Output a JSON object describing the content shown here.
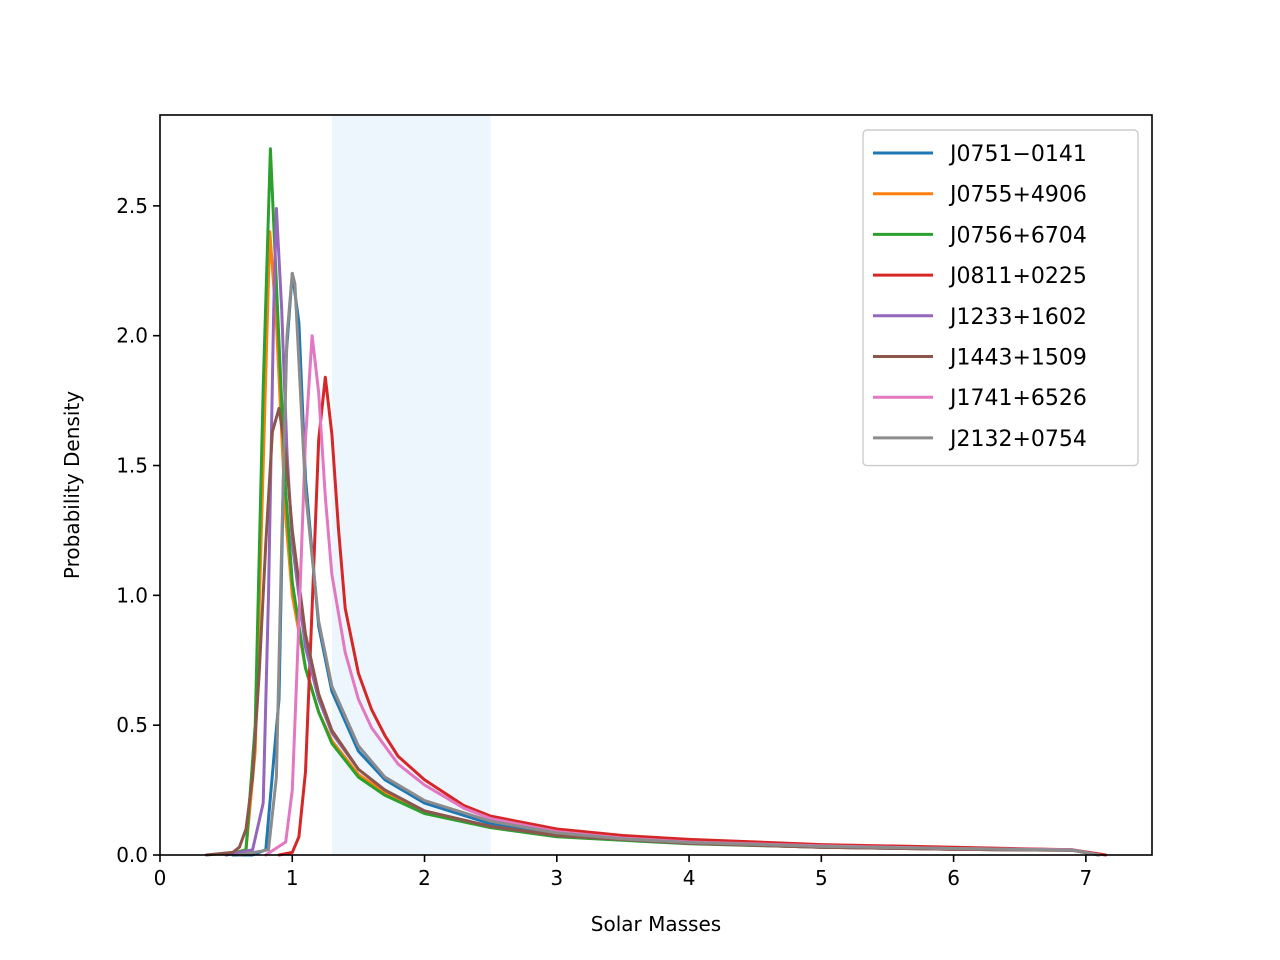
{
  "chart_data": {
    "type": "line",
    "title": "",
    "xlabel": "Solar Masses",
    "ylabel": "Probability Density",
    "xlim": [
      0,
      7.5
    ],
    "ylim": [
      0,
      2.85
    ],
    "xticks": [
      0,
      1,
      2,
      3,
      4,
      5,
      6,
      7
    ],
    "yticks": [
      0.0,
      0.5,
      1.0,
      1.5,
      2.0,
      2.5
    ],
    "grid": false,
    "legend_position": "top-right",
    "shaded_region": {
      "x_start": 1.3,
      "x_end": 2.5,
      "color": "#eef6fd"
    },
    "series": [
      {
        "name": "J0751−0141",
        "color": "#1f77b4",
        "x": [
          0.55,
          0.7,
          0.8,
          0.9,
          0.95,
          1.0,
          1.05,
          1.1,
          1.2,
          1.3,
          1.5,
          1.7,
          2.0,
          2.5,
          3.0,
          3.5,
          4.0,
          5.0,
          6.0,
          6.9,
          7.1
        ],
        "y": [
          0,
          0,
          0.02,
          0.6,
          1.9,
          2.24,
          2.05,
          1.45,
          0.88,
          0.63,
          0.4,
          0.29,
          0.2,
          0.12,
          0.08,
          0.06,
          0.05,
          0.035,
          0.025,
          0.02,
          0
        ]
      },
      {
        "name": "J0755+4906",
        "color": "#ff7f0e",
        "x": [
          0.5,
          0.65,
          0.72,
          0.78,
          0.83,
          0.88,
          0.95,
          1.0,
          1.1,
          1.2,
          1.3,
          1.5,
          1.7,
          2.0,
          2.5,
          3.0,
          4.0,
          5.0,
          6.0,
          6.9,
          7.1
        ],
        "y": [
          0,
          0.02,
          0.4,
          1.5,
          2.4,
          2.05,
          1.3,
          1.0,
          0.72,
          0.55,
          0.44,
          0.31,
          0.24,
          0.17,
          0.11,
          0.075,
          0.045,
          0.03,
          0.022,
          0.018,
          0
        ]
      },
      {
        "name": "J0756+6704",
        "color": "#2ca02c",
        "x": [
          0.5,
          0.65,
          0.72,
          0.78,
          0.835,
          0.88,
          0.95,
          1.0,
          1.1,
          1.2,
          1.3,
          1.5,
          1.7,
          2.0,
          2.5,
          3.0,
          4.0,
          5.0,
          6.0,
          6.9,
          7.1
        ],
        "y": [
          0,
          0.02,
          0.5,
          1.8,
          2.72,
          2.2,
          1.4,
          1.05,
          0.72,
          0.55,
          0.43,
          0.3,
          0.23,
          0.16,
          0.105,
          0.07,
          0.043,
          0.03,
          0.022,
          0.018,
          0
        ]
      },
      {
        "name": "J0811+0225",
        "color": "#d62728",
        "x": [
          0.9,
          1.0,
          1.05,
          1.1,
          1.15,
          1.2,
          1.25,
          1.3,
          1.35,
          1.4,
          1.5,
          1.6,
          1.7,
          1.8,
          2.0,
          2.3,
          2.5,
          3.0,
          3.5,
          4.0,
          5.0,
          6.0,
          6.9,
          7.15
        ],
        "y": [
          0,
          0.01,
          0.07,
          0.32,
          0.95,
          1.6,
          1.84,
          1.62,
          1.25,
          0.95,
          0.7,
          0.56,
          0.46,
          0.38,
          0.29,
          0.19,
          0.15,
          0.1,
          0.075,
          0.06,
          0.04,
          0.03,
          0.02,
          0
        ]
      },
      {
        "name": "J1233+1602",
        "color": "#9467bd",
        "x": [
          0.5,
          0.7,
          0.78,
          0.82,
          0.86,
          0.88,
          0.92,
          0.96,
          1.0,
          1.1,
          1.2,
          1.3,
          1.5,
          1.7,
          2.0,
          2.5,
          3.0,
          4.0,
          5.0,
          6.0,
          6.9,
          7.1
        ],
        "y": [
          0,
          0.02,
          0.2,
          1.0,
          2.1,
          2.49,
          2.1,
          1.55,
          1.2,
          0.8,
          0.6,
          0.47,
          0.33,
          0.25,
          0.17,
          0.11,
          0.075,
          0.045,
          0.03,
          0.022,
          0.018,
          0
        ]
      },
      {
        "name": "J1443+1509",
        "color": "#8c564b",
        "x": [
          0.35,
          0.55,
          0.6,
          0.65,
          0.7,
          0.75,
          0.8,
          0.85,
          0.9,
          0.95,
          1.0,
          1.1,
          1.2,
          1.3,
          1.5,
          1.7,
          2.0,
          2.5,
          3.0,
          4.0,
          5.0,
          6.0,
          6.9,
          7.1
        ],
        "y": [
          0,
          0.01,
          0.03,
          0.1,
          0.3,
          0.7,
          1.2,
          1.63,
          1.72,
          1.55,
          1.25,
          0.85,
          0.62,
          0.48,
          0.33,
          0.25,
          0.17,
          0.11,
          0.075,
          0.045,
          0.03,
          0.022,
          0.018,
          0
        ]
      },
      {
        "name": "J1741+6526",
        "color": "#e377c2",
        "x": [
          0.8,
          0.95,
          1.0,
          1.05,
          1.1,
          1.15,
          1.2,
          1.25,
          1.3,
          1.4,
          1.5,
          1.6,
          1.8,
          2.0,
          2.3,
          2.5,
          3.0,
          3.5,
          4.0,
          5.0,
          6.0,
          6.9,
          7.1
        ],
        "y": [
          0,
          0.05,
          0.25,
          0.9,
          1.6,
          2.0,
          1.78,
          1.38,
          1.08,
          0.78,
          0.6,
          0.49,
          0.35,
          0.27,
          0.18,
          0.14,
          0.09,
          0.065,
          0.05,
          0.035,
          0.025,
          0.02,
          0
        ]
      },
      {
        "name": "J2132+0754",
        "color": "#8c8c8c",
        "x": [
          0.6,
          0.82,
          0.88,
          0.92,
          0.96,
          1.0,
          1.02,
          1.05,
          1.1,
          1.2,
          1.3,
          1.5,
          1.7,
          2.0,
          2.5,
          3.0,
          3.5,
          4.0,
          5.0,
          6.0,
          6.9,
          7.1
        ],
        "y": [
          0,
          0.02,
          0.3,
          1.2,
          2.0,
          2.24,
          2.2,
          1.9,
          1.4,
          0.9,
          0.65,
          0.42,
          0.3,
          0.21,
          0.13,
          0.085,
          0.062,
          0.048,
          0.033,
          0.025,
          0.019,
          0
        ]
      }
    ]
  }
}
